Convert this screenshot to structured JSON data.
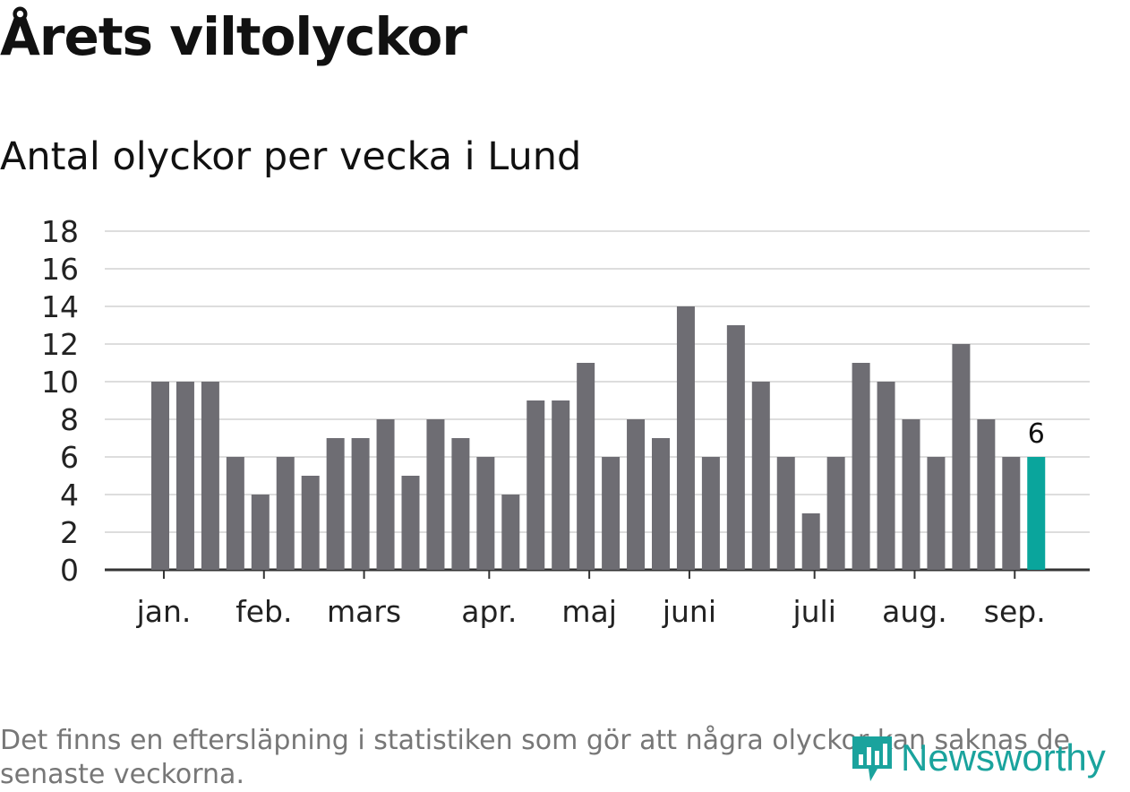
{
  "chart_data": {
    "type": "bar",
    "title": "Årets viltolyckor",
    "subtitle": "Antal olyckor per vecka i Lund",
    "xlabel": "",
    "ylabel": "",
    "ylim": [
      0,
      18
    ],
    "yticks": [
      0,
      2,
      4,
      6,
      8,
      10,
      12,
      14,
      16,
      18
    ],
    "grid": true,
    "values": [
      10,
      10,
      10,
      6,
      4,
      6,
      5,
      7,
      7,
      8,
      5,
      8,
      7,
      6,
      4,
      9,
      9,
      11,
      6,
      8,
      7,
      14,
      6,
      13,
      10,
      6,
      3,
      6,
      11,
      10,
      8,
      6,
      12,
      8,
      6,
      6
    ],
    "highlight_index": 35,
    "highlight_label": "6",
    "month_labels": [
      {
        "label": "jan.",
        "week": 0.5
      },
      {
        "label": "feb.",
        "week": 4.5
      },
      {
        "label": "mars",
        "week": 8.5
      },
      {
        "label": "apr.",
        "week": 13.5
      },
      {
        "label": "maj",
        "week": 17.5
      },
      {
        "label": "juni",
        "week": 21.5
      },
      {
        "label": "juli",
        "week": 26.5
      },
      {
        "label": "aug.",
        "week": 30.5
      },
      {
        "label": "sep.",
        "week": 34.5
      }
    ],
    "colors": {
      "bar": "#6e6d73",
      "highlight": "#0aa59c",
      "grid": "#dddddd",
      "axis": "#333333"
    }
  },
  "footnote": "Det finns en eftersläpning i statistiken som gör att några olyckor kan saknas de senaste veckorna.",
  "logo": {
    "text": "Newsworthy",
    "icon": "newsworthy-logo-icon"
  }
}
